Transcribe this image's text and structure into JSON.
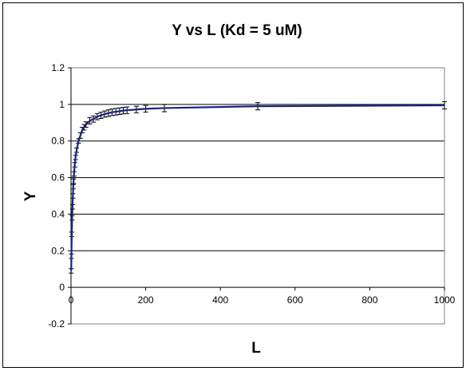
{
  "chart_data": {
    "type": "line",
    "title": "Y vs L (Kd = 5 uM)",
    "xlabel": "L",
    "ylabel": "Y",
    "xlim": [
      0,
      1000
    ],
    "ylim": [
      -0.2,
      1.2
    ],
    "x_ticks": [
      "0",
      "200",
      "400",
      "600",
      "800",
      "1000"
    ],
    "y_ticks": [
      "-0.2",
      "0",
      "0.2",
      "0.4",
      "0.6",
      "0.8",
      "1",
      "1.2"
    ],
    "grid": "horizontal",
    "legend": "none",
    "series": [
      {
        "x": [
          0.5,
          1,
          2,
          3,
          4,
          5,
          6,
          7,
          8,
          10,
          12,
          15,
          20,
          25,
          30,
          35,
          40,
          50,
          60,
          70,
          80,
          90,
          100,
          110,
          120,
          130,
          140,
          150,
          175,
          200,
          250,
          500,
          1000
        ],
        "y": [
          0.09,
          0.17,
          0.29,
          0.38,
          0.44,
          0.5,
          0.55,
          0.58,
          0.62,
          0.67,
          0.71,
          0.75,
          0.8,
          0.83,
          0.86,
          0.875,
          0.89,
          0.91,
          0.92,
          0.933,
          0.94,
          0.947,
          0.952,
          0.957,
          0.96,
          0.963,
          0.966,
          0.968,
          0.972,
          0.976,
          0.98,
          0.99,
          0.995
        ],
        "error": [
          0.012,
          0.012,
          0.012,
          0.012,
          0.012,
          0.012,
          0.012,
          0.012,
          0.012,
          0.012,
          0.012,
          0.012,
          0.012,
          0.015,
          0.015,
          0.015,
          0.015,
          0.017,
          0.017,
          0.017,
          0.017,
          0.017,
          0.018,
          0.018,
          0.018,
          0.018,
          0.018,
          0.018,
          0.018,
          0.018,
          0.02,
          0.02,
          0.02
        ]
      }
    ],
    "colors": {
      "line": "#1a237e",
      "grid": "#000000",
      "error_bar": "#000000",
      "plot_bg": "#ffffff"
    }
  }
}
